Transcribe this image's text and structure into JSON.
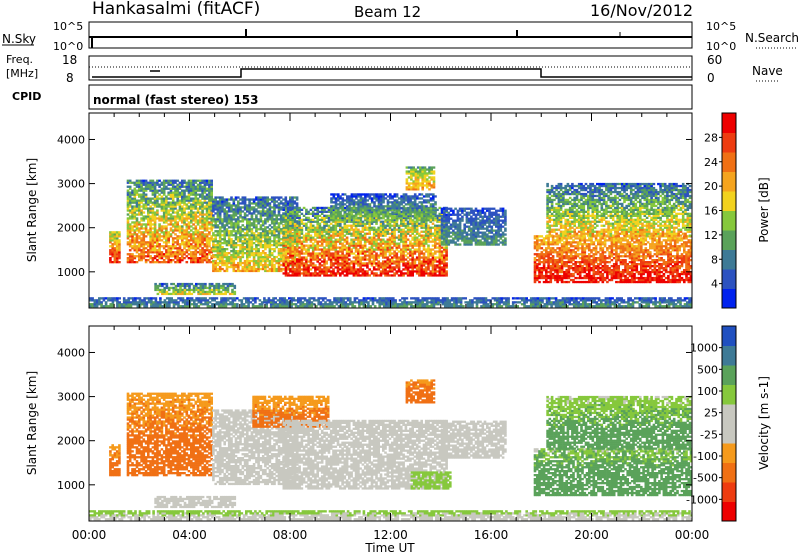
{
  "header": {
    "radar": "Hankasalmi (fitACF)",
    "beam": "Beam 12",
    "date": "16/Nov/2012"
  },
  "strip_nsky": {
    "left_label": "N.Sky",
    "left_ticks": [
      "10^5",
      "10^0"
    ],
    "right_label": "N.Search",
    "right_ticks": [
      "10^5",
      "10^0"
    ]
  },
  "strip_freq": {
    "left_label_1": "Freq.",
    "left_label_2": "[MHz]",
    "left_ticks": [
      "18",
      "8"
    ],
    "right_label": "Nave",
    "right_ticks": [
      "60",
      "0"
    ]
  },
  "cpid": {
    "label": "CPID",
    "text": "normal (fast stereo) 153"
  },
  "colors": {
    "power": [
      "#0022ee",
      "#2c52c0",
      "#3e7a96",
      "#5aa25a",
      "#86c83c",
      "#f2d21e",
      "#f5a41e",
      "#f07014",
      "#ee3c10",
      "#ee0000"
    ],
    "velocity": [
      "#ee0000",
      "#ee3c10",
      "#f07014",
      "#f59a1c",
      "#c8c8c0",
      "#c8c8c0",
      "#86c83c",
      "#5aa25a",
      "#3e7a96",
      "#2050c0"
    ]
  },
  "chart_data": [
    {
      "type": "heatmap",
      "name": "power",
      "ylabel": "Slant Range [km]",
      "ylim": [
        180,
        4600
      ],
      "yticks": [
        "1000",
        "2000",
        "3000",
        "4000"
      ],
      "xlim": [
        0,
        24
      ],
      "colorbar": {
        "label": "Power [dB]",
        "ticks": [
          "4",
          "8",
          "12",
          "16",
          "20",
          "24",
          "28"
        ],
        "range": [
          0,
          32
        ]
      },
      "regions": [
        {
          "t0": 0.8,
          "t1": 1.2,
          "r0": 1200,
          "r1": 1900,
          "v0": 30,
          "v1": 14
        },
        {
          "t0": 1.5,
          "t1": 4.9,
          "r0": 1200,
          "r1": 3050,
          "v0": 26,
          "v1": 8
        },
        {
          "t0": 2.6,
          "t1": 5.8,
          "r0": 480,
          "r1": 720,
          "v0": 18,
          "v1": 6
        },
        {
          "t0": 4.9,
          "t1": 8.3,
          "r0": 1000,
          "r1": 2700,
          "v0": 20,
          "v1": 6
        },
        {
          "t0": 7.7,
          "t1": 14.2,
          "r0": 900,
          "r1": 2450,
          "v0": 30,
          "v1": 8
        },
        {
          "t0": 9.6,
          "t1": 13.8,
          "r0": 2150,
          "r1": 2750,
          "v0": 14,
          "v1": 4
        },
        {
          "t0": 12.6,
          "t1": 13.7,
          "r0": 2850,
          "r1": 3350,
          "v0": 22,
          "v1": 12
        },
        {
          "t0": 14.0,
          "t1": 16.6,
          "r0": 1600,
          "r1": 2450,
          "v0": 10,
          "v1": 4
        },
        {
          "t0": 17.7,
          "t1": 24.0,
          "r0": 750,
          "r1": 1800,
          "v0": 30,
          "v1": 20
        },
        {
          "t0": 18.2,
          "t1": 23.9,
          "r0": 1800,
          "r1": 3000,
          "v0": 20,
          "v1": 6
        },
        {
          "t0": 0.0,
          "t1": 24.0,
          "r0": 200,
          "r1": 420,
          "v0": 10,
          "v1": 4
        }
      ]
    },
    {
      "type": "heatmap",
      "name": "velocity",
      "ylabel": "Slant Range [km]",
      "ylim": [
        180,
        4600
      ],
      "yticks": [
        "1000",
        "2000",
        "3000",
        "4000"
      ],
      "xlim": [
        0,
        24
      ],
      "xticks": [
        "00:00",
        "04:00",
        "08:00",
        "12:00",
        "16:00",
        "20:00",
        "00:00"
      ],
      "xlabel": "Time UT",
      "colorbar": {
        "label": "Velocity [m s-1]",
        "ticks": [
          "1000",
          "500",
          "100",
          "25",
          "-25",
          "-100",
          "-500",
          "-1000"
        ],
        "range": [
          -1200,
          1200
        ]
      },
      "regions": [
        {
          "t0": 0.8,
          "t1": 1.2,
          "r0": 1200,
          "r1": 1900,
          "v0": -150,
          "v1": -80
        },
        {
          "t0": 1.5,
          "t1": 4.9,
          "r0": 1200,
          "r1": 3050,
          "v0": -200,
          "v1": -60
        },
        {
          "t0": 2.6,
          "t1": 5.8,
          "r0": 480,
          "r1": 720,
          "v0": 0,
          "v1": 10
        },
        {
          "t0": 4.9,
          "t1": 8.3,
          "r0": 1000,
          "r1": 2700,
          "v0": 0,
          "v1": 15
        },
        {
          "t0": 6.5,
          "t1": 9.5,
          "r0": 2300,
          "r1": 3000,
          "v0": -150,
          "v1": -60
        },
        {
          "t0": 7.7,
          "t1": 14.2,
          "r0": 900,
          "r1": 2450,
          "v0": 0,
          "v1": 15
        },
        {
          "t0": 12.6,
          "t1": 13.7,
          "r0": 2850,
          "r1": 3350,
          "v0": -180,
          "v1": -80
        },
        {
          "t0": 12.8,
          "t1": 14.4,
          "r0": 900,
          "r1": 1300,
          "v0": 60,
          "v1": 40
        },
        {
          "t0": 14.0,
          "t1": 16.6,
          "r0": 1600,
          "r1": 2450,
          "v0": 0,
          "v1": 10
        },
        {
          "t0": 17.7,
          "t1": 24.0,
          "r0": 750,
          "r1": 1800,
          "v0": 300,
          "v1": 60
        },
        {
          "t0": 18.2,
          "t1": 23.9,
          "r0": 1800,
          "r1": 3000,
          "v0": 200,
          "v1": 40
        },
        {
          "t0": 0.0,
          "t1": 24.0,
          "r0": 200,
          "r1": 420,
          "v0": 0,
          "v1": 50
        }
      ]
    }
  ]
}
